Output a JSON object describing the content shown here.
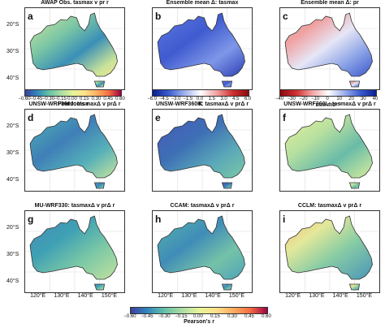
{
  "panels": [
    {
      "letter": "a",
      "title": "AWAP Obs. tasmax v pr r"
    },
    {
      "letter": "b",
      "title": "Ensemble mean Δ: tasmax"
    },
    {
      "letter": "c",
      "title": "Ensemble mean Δ: pr"
    },
    {
      "letter": "d",
      "title": "UNSW-WRF360J: tasmaxΔ v prΔ r"
    },
    {
      "letter": "e",
      "title": "UNSW-WRF360K: tasmaxΔ v prΔ r"
    },
    {
      "letter": "f",
      "title": "UNSW-WRF360L: tasmaxΔ v prΔ r"
    },
    {
      "letter": "g",
      "title": "MU-WRF330: tasmaxΔ v prΔ r"
    },
    {
      "letter": "h",
      "title": "CCAM: tasmaxΔ v prΔ r"
    },
    {
      "letter": "i",
      "title": "CCLM: tasmaxΔ v prΔ r"
    }
  ],
  "lat_ticks": [
    "20°S",
    "30°S",
    "40°S"
  ],
  "lon_ticks": [
    "120°E",
    "130°E",
    "140°E",
    "150°E"
  ],
  "colorbar_a": {
    "ticks": [
      "−0.60",
      "−0.45",
      "−0.30",
      "−0.15",
      "0.00",
      "0.15",
      "0.30",
      "0.45",
      "0.60"
    ],
    "label": "Pearson's r"
  },
  "colorbar_b": {
    "ticks": [
      "−6.0",
      "−4.5",
      "−3.0",
      "−1.5",
      "0.0",
      "1.5",
      "3.0",
      "4.5",
      "6.0"
    ],
    "label": "K"
  },
  "colorbar_c": {
    "ticks": [
      "−40",
      "−30",
      "−20",
      "−10",
      "0",
      "10",
      "20",
      "30",
      "40"
    ],
    "label": "mm mo⁻¹"
  },
  "colorbar_main": {
    "ticks": [
      "−0.60",
      "−0.45",
      "−0.30",
      "−0.15",
      "0.00",
      "0.15",
      "0.30",
      "0.45",
      "0.60"
    ],
    "label": "Pearson's r"
  },
  "colors": {
    "spectral_low": "#3b4cc0",
    "spectral_mid": "#f7f7a0",
    "spectral_high": "#b2182b",
    "blue": "#2b50c8",
    "red": "#b21e2b"
  }
}
